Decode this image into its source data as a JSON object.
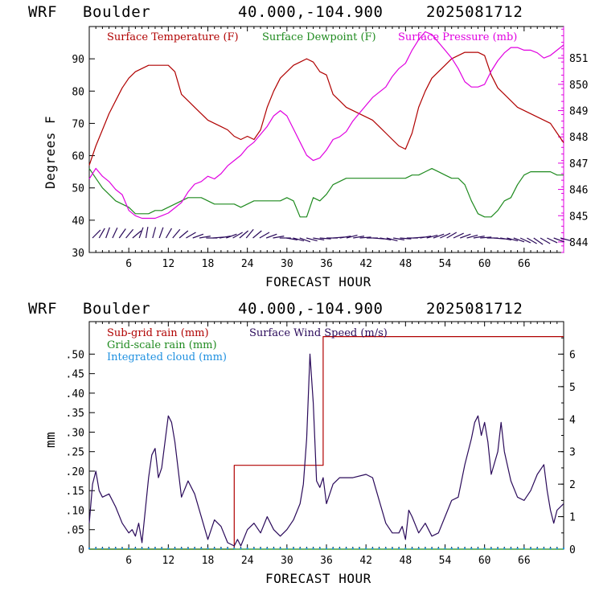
{
  "colors": {
    "temp": "#b00000",
    "dew": "#1e8a1e",
    "press": "#e000e0",
    "wind": "#2a0a5a",
    "barb": "#2a0a5a",
    "sub": "#b00000",
    "cloud": "#1e90e0"
  },
  "top": {
    "header": {
      "model": "WRF",
      "site": "Boulder",
      "coords": "40.000,-104.900",
      "run": "2025081712"
    }
  },
  "bottom": {
    "header": {
      "model": "WRF",
      "site": "Boulder",
      "coords": "40.000,-104.900",
      "run": "2025081712"
    }
  },
  "chart_data": [
    {
      "type": "line",
      "xlabel": "FORECAST HOUR",
      "ylabel": "Degrees F",
      "xlim": [
        0,
        72
      ],
      "ylim": [
        30,
        100
      ],
      "y2lim": [
        843.6,
        852.2
      ],
      "xticks": [
        "6",
        "12",
        "18",
        "24",
        "30",
        "36",
        "42",
        "48",
        "54",
        "60",
        "66"
      ],
      "xtick_values": [
        6,
        12,
        18,
        24,
        30,
        36,
        42,
        48,
        54,
        60,
        66
      ],
      "yticks": [
        "30",
        "40",
        "50",
        "60",
        "70",
        "80",
        "90"
      ],
      "ytick_values": [
        30,
        40,
        50,
        60,
        70,
        80,
        90
      ],
      "y2ticks": [
        "844",
        "845",
        "846",
        "847",
        "848",
        "849",
        "850",
        "851"
      ],
      "y2tick_values": [
        844,
        845,
        846,
        847,
        848,
        849,
        850,
        851
      ],
      "legend": [
        "Surface Temperature (F)",
        "Surface Dewpoint (F)",
        "Surface Pressure (mb)"
      ],
      "series": [
        {
          "name": "Surface Temperature (F)",
          "axis": "left",
          "x": [
            0,
            1,
            2,
            3,
            4,
            5,
            6,
            7,
            8,
            9,
            10,
            11,
            12,
            13,
            14,
            15,
            16,
            17,
            18,
            19,
            20,
            21,
            22,
            23,
            24,
            25,
            26,
            27,
            28,
            29,
            30,
            31,
            32,
            33,
            34,
            35,
            36,
            37,
            38,
            39,
            40,
            41,
            42,
            43,
            44,
            45,
            46,
            47,
            48,
            49,
            50,
            51,
            52,
            53,
            54,
            55,
            56,
            57,
            58,
            59,
            60,
            61,
            62,
            63,
            64,
            65,
            66,
            67,
            68,
            69,
            70,
            71,
            72
          ],
          "y": [
            57,
            63,
            68,
            73,
            77,
            81,
            84,
            86,
            87,
            88,
            88,
            88,
            88,
            86,
            79,
            77,
            75,
            73,
            71,
            70,
            69,
            68,
            66,
            65,
            66,
            65,
            68,
            75,
            80,
            84,
            86,
            88,
            89,
            90,
            89,
            86,
            85,
            79,
            77,
            75,
            74,
            73,
            72,
            71,
            69,
            67,
            65,
            63,
            62,
            67,
            75,
            80,
            84,
            86,
            88,
            90,
            91,
            92,
            92,
            92,
            91,
            85,
            81,
            79,
            77,
            75,
            74,
            73,
            72,
            71,
            70,
            67,
            64
          ]
        },
        {
          "name": "Surface Dewpoint (F)",
          "axis": "left",
          "x": [
            0,
            1,
            2,
            3,
            4,
            5,
            6,
            7,
            8,
            9,
            10,
            11,
            12,
            13,
            14,
            15,
            16,
            17,
            18,
            19,
            20,
            21,
            22,
            23,
            24,
            25,
            26,
            27,
            28,
            29,
            30,
            31,
            32,
            33,
            34,
            35,
            36,
            37,
            38,
            39,
            40,
            41,
            42,
            43,
            44,
            45,
            46,
            47,
            48,
            49,
            50,
            51,
            52,
            53,
            54,
            55,
            56,
            57,
            58,
            59,
            60,
            61,
            62,
            63,
            64,
            65,
            66,
            67,
            68,
            69,
            70,
            71,
            72
          ],
          "y": [
            56,
            53,
            50,
            48,
            46,
            45,
            44,
            42,
            42,
            42,
            43,
            43,
            44,
            45,
            46,
            47,
            47,
            47,
            46,
            45,
            45,
            45,
            45,
            44,
            45,
            46,
            46,
            46,
            46,
            46,
            47,
            46,
            41,
            41,
            47,
            46,
            48,
            51,
            52,
            53,
            53,
            53,
            53,
            53,
            53,
            53,
            53,
            53,
            53,
            54,
            54,
            55,
            56,
            55,
            54,
            53,
            53,
            51,
            46,
            42,
            41,
            41,
            43,
            46,
            47,
            51,
            54,
            55,
            55,
            55,
            55,
            54,
            54
          ]
        },
        {
          "name": "Surface Pressure (mb)",
          "axis": "right",
          "x": [
            0,
            1,
            2,
            3,
            4,
            5,
            6,
            7,
            8,
            9,
            10,
            11,
            12,
            13,
            14,
            15,
            16,
            17,
            18,
            19,
            20,
            21,
            22,
            23,
            24,
            25,
            26,
            27,
            28,
            29,
            30,
            31,
            32,
            33,
            34,
            35,
            36,
            37,
            38,
            39,
            40,
            41,
            42,
            43,
            44,
            45,
            46,
            47,
            48,
            49,
            50,
            51,
            52,
            53,
            54,
            55,
            56,
            57,
            58,
            59,
            60,
            61,
            62,
            63,
            64,
            65,
            66,
            67,
            68,
            69,
            70,
            71,
            72
          ],
          "y": [
            846.4,
            846.8,
            846.5,
            846.3,
            846.0,
            845.8,
            845.2,
            845.0,
            844.9,
            844.9,
            844.9,
            845.0,
            845.1,
            845.3,
            845.5,
            845.9,
            846.2,
            846.3,
            846.5,
            846.4,
            846.6,
            846.9,
            847.1,
            847.3,
            847.6,
            847.8,
            848.1,
            848.4,
            848.8,
            849.0,
            848.8,
            848.3,
            847.8,
            847.3,
            847.1,
            847.2,
            847.5,
            847.9,
            848.0,
            848.2,
            848.6,
            848.9,
            849.2,
            849.5,
            849.7,
            849.9,
            850.3,
            850.6,
            850.8,
            851.3,
            851.7,
            852.0,
            851.9,
            851.6,
            851.3,
            851.0,
            850.6,
            850.1,
            849.9,
            849.9,
            850.0,
            850.5,
            850.9,
            851.2,
            851.4,
            851.4,
            851.3,
            851.3,
            851.2,
            851.0,
            851.1,
            851.3,
            851.5
          ]
        }
      ],
      "wind_barbs_direction_deg": [
        225,
        210,
        200,
        205,
        215,
        220,
        230,
        200,
        190,
        195,
        200,
        210,
        220,
        230,
        240,
        250,
        260,
        270,
        265,
        260,
        250,
        240,
        230,
        220,
        230,
        240,
        250,
        260,
        270,
        280,
        285,
        290,
        285,
        280,
        275,
        270,
        265,
        260,
        255,
        260,
        265,
        270,
        275,
        280,
        285,
        280,
        275,
        270,
        265,
        260,
        255,
        250,
        245,
        240,
        245,
        250,
        255,
        260,
        265,
        270,
        275,
        280,
        285,
        290,
        295,
        300,
        305,
        300,
        295,
        290,
        285
      ]
    },
    {
      "type": "line",
      "xlabel": "FORECAST HOUR",
      "ylabel": "mm",
      "xlim": [
        0,
        72
      ],
      "ylim": [
        0,
        0.5833
      ],
      "y2lim": [
        0,
        7
      ],
      "xticks": [
        "6",
        "12",
        "18",
        "24",
        "30",
        "36",
        "42",
        "48",
        "54",
        "60",
        "66"
      ],
      "xtick_values": [
        6,
        12,
        18,
        24,
        30,
        36,
        42,
        48,
        54,
        60,
        66
      ],
      "yticks": [
        "0",
        ".05",
        ".10",
        ".15",
        ".20",
        ".25",
        ".30",
        ".35",
        ".40",
        ".45",
        ".50"
      ],
      "ytick_values": [
        0,
        0.05,
        0.1,
        0.15,
        0.2,
        0.25,
        0.3,
        0.35,
        0.4,
        0.45,
        0.5
      ],
      "y2ticks": [
        "0",
        "1",
        "2",
        "3",
        "4",
        "5",
        "6"
      ],
      "y2tick_values": [
        0,
        1,
        2,
        3,
        4,
        5,
        6
      ],
      "legend": [
        "Sub-grid rain (mm)",
        "Grid-scale rain (mm)",
        "Integrated cloud (mm)",
        "Surface Wind Speed (m/s)"
      ],
      "series": [
        {
          "name": "Sub-grid rain (mm)",
          "axis": "left",
          "step": true,
          "x": [
            0,
            22,
            22,
            35.5,
            35.5,
            72
          ],
          "y": [
            0,
            0,
            0.215,
            0.215,
            0.545,
            0.545
          ]
        },
        {
          "name": "Grid-scale rain (mm)",
          "axis": "left",
          "x": [
            0,
            72
          ],
          "y": [
            0,
            0
          ]
        },
        {
          "name": "Integrated cloud (mm)",
          "axis": "left",
          "dotted": true,
          "x": [
            0,
            72
          ],
          "y": [
            0,
            0
          ]
        },
        {
          "name": "Surface Wind Speed (m/s)",
          "axis": "right",
          "x": [
            0,
            0.5,
            1,
            1.5,
            2,
            3,
            4,
            5,
            6,
            6.5,
            7,
            7.5,
            8,
            9,
            9.5,
            10,
            10.5,
            11,
            12,
            12.5,
            13,
            14,
            15,
            16,
            17,
            18,
            19,
            20,
            21,
            22,
            22.5,
            23,
            24,
            25,
            26,
            27,
            28,
            29,
            30,
            31,
            32,
            32.5,
            33,
            33.5,
            34,
            34.5,
            35,
            35.5,
            36,
            37,
            38,
            40,
            42,
            43,
            44,
            45,
            46,
            47,
            47.5,
            48,
            48.5,
            49,
            50,
            51,
            52,
            53,
            54,
            55,
            56,
            57,
            58,
            58.5,
            59,
            59.5,
            60,
            60.5,
            61,
            62,
            62.5,
            63,
            64,
            65,
            66,
            67,
            68,
            69,
            69.5,
            70,
            70.5,
            71,
            72
          ],
          "y": [
            0.8,
            2.0,
            2.4,
            1.8,
            1.6,
            1.7,
            1.3,
            0.8,
            0.5,
            0.6,
            0.4,
            0.8,
            0.2,
            2.2,
            2.9,
            3.1,
            2.2,
            2.5,
            4.1,
            3.9,
            3.3,
            1.6,
            2.1,
            1.7,
            1.0,
            0.3,
            0.9,
            0.7,
            0.2,
            0.1,
            0.3,
            0.1,
            0.6,
            0.8,
            0.5,
            1.0,
            0.6,
            0.4,
            0.6,
            0.9,
            1.4,
            2.0,
            3.4,
            6.0,
            4.5,
            2.1,
            1.9,
            2.2,
            1.4,
            2.0,
            2.2,
            2.2,
            2.3,
            2.2,
            1.5,
            0.8,
            0.5,
            0.5,
            0.7,
            0.3,
            1.2,
            1.0,
            0.5,
            0.8,
            0.4,
            0.5,
            1.0,
            1.5,
            1.6,
            2.6,
            3.4,
            3.9,
            4.1,
            3.5,
            3.9,
            3.3,
            2.3,
            3.0,
            3.9,
            3.0,
            2.1,
            1.6,
            1.5,
            1.8,
            2.3,
            2.6,
            1.8,
            1.2,
            0.8,
            1.2,
            1.4
          ]
        }
      ]
    }
  ]
}
